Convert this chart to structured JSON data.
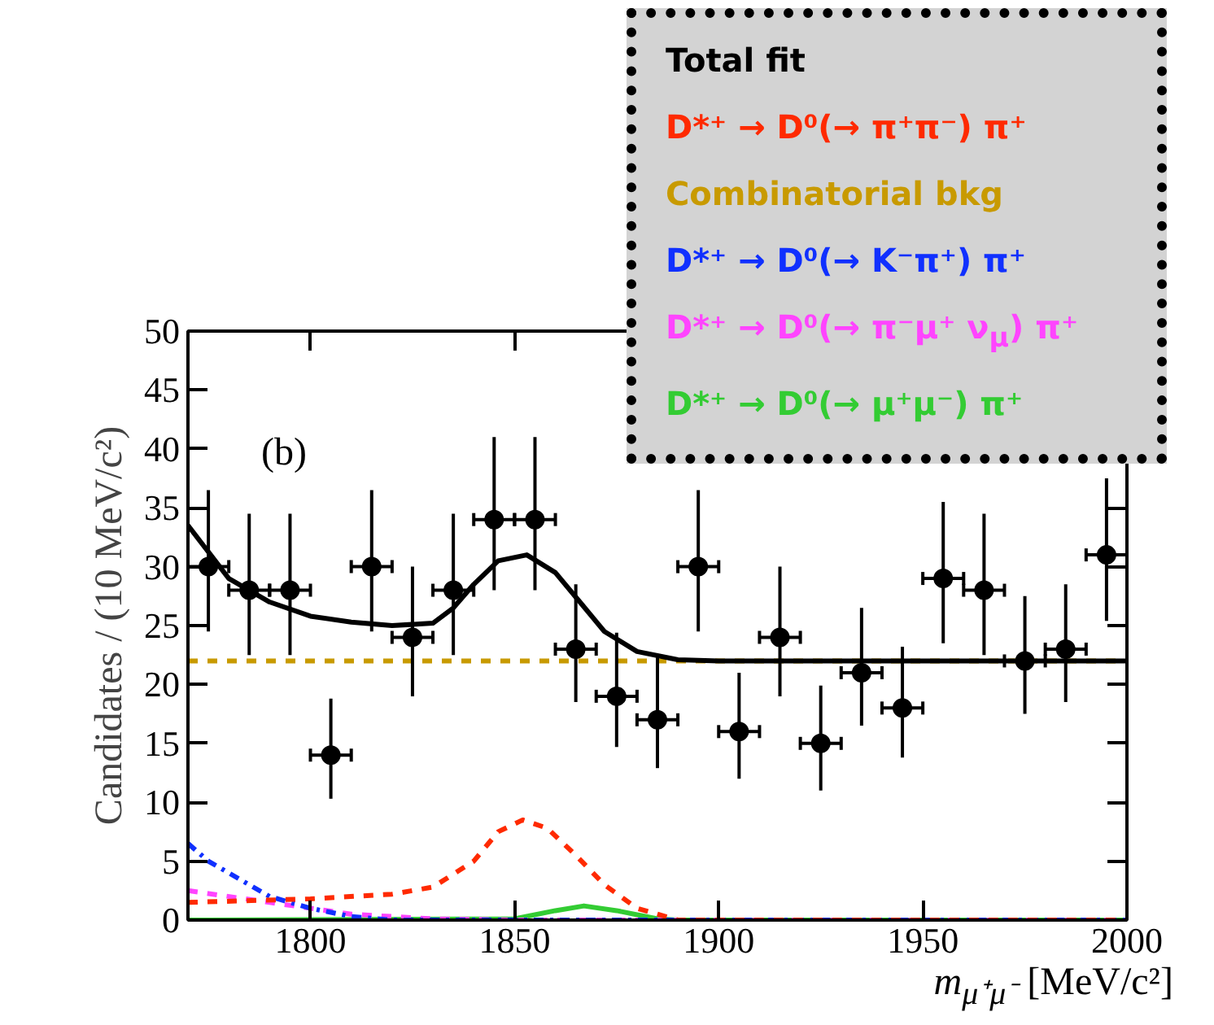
{
  "chart_data": {
    "type": "scatter",
    "xlabel": "m$_{μ⁺μ⁻}$ [MeV/c²]",
    "ylabel": "Candidates / (10 MeV/c²)",
    "annotations": [
      "(b)"
    ],
    "xlim": [
      1770,
      2000
    ],
    "xticks": [
      1800,
      1850,
      1900,
      1950,
      2000
    ],
    "ylim": [
      0,
      50
    ],
    "yticks": [
      0,
      5,
      10,
      15,
      20,
      25,
      30,
      35,
      40,
      45,
      50
    ],
    "grid": false,
    "legend": "top right",
    "series": [
      {
        "marker": "circle",
        "color": "#000000",
        "x": [
          1775,
          1785,
          1795,
          1805,
          1815,
          1825,
          1835,
          1845,
          1855,
          1865,
          1875,
          1885,
          1895,
          1905,
          1915,
          1925,
          1935,
          1945,
          1955,
          1965,
          1975,
          1985,
          1995
        ],
        "values": [
          30,
          28,
          28,
          14,
          30,
          24,
          28,
          34,
          34,
          23,
          19,
          17,
          30,
          16,
          24,
          15,
          21,
          18,
          29,
          28,
          22,
          23,
          31
        ],
        "errors": [
          [
            24.5,
            36.5
          ],
          [
            22.5,
            34.5
          ],
          [
            22.5,
            34.5
          ],
          [
            10.3,
            18.8
          ],
          [
            24.5,
            36.5
          ],
          [
            19,
            30
          ],
          [
            22.5,
            34.5
          ],
          [
            28,
            41
          ],
          [
            28,
            41
          ],
          [
            18.5,
            28.5
          ],
          [
            14.7,
            24.4
          ],
          [
            12.9,
            22.3
          ],
          [
            24.5,
            36.5
          ],
          [
            12,
            21
          ],
          [
            19,
            30
          ],
          [
            11,
            19.9
          ],
          [
            16.5,
            26.5
          ],
          [
            13.8,
            23.2
          ],
          [
            23.5,
            35.5
          ],
          [
            22.5,
            34.5
          ],
          [
            17.5,
            27.5
          ],
          [
            18.5,
            28.5
          ],
          [
            25.4,
            37.5
          ]
        ],
        "xerrors": [
          5,
          5,
          5,
          5,
          5,
          5,
          5,
          5,
          5,
          5,
          5,
          5,
          5,
          5,
          5,
          5,
          5,
          5,
          5,
          5,
          5,
          5,
          5
        ]
      },
      {
        "type": "line",
        "name": "Total fit",
        "color": "#000000",
        "line_style": "solid",
        "x": [
          1770,
          1780,
          1790,
          1800,
          1810,
          1820,
          1830,
          1835,
          1840,
          1846,
          1853,
          1860,
          1866,
          1872,
          1880,
          1890,
          1900,
          2000
        ],
        "values": [
          33.5,
          29,
          27,
          25.8,
          25.3,
          25,
          25.2,
          26.5,
          28.5,
          30.5,
          31,
          29.5,
          27,
          24.5,
          22.8,
          22.1,
          22,
          22
        ]
      },
      {
        "type": "line",
        "name": "D*⁺ → D⁰(→ π⁺π⁻) π⁺",
        "color": "#ff2a00",
        "line_style": "dashed",
        "x": [
          1770,
          1800,
          1820,
          1830,
          1840,
          1846,
          1852,
          1858,
          1865,
          1872,
          1880,
          1890,
          2000
        ],
        "values": [
          1.5,
          1.8,
          2.2,
          2.8,
          5,
          7.5,
          8.5,
          7.8,
          5.5,
          3,
          1,
          0,
          0
        ]
      },
      {
        "type": "line",
        "name": "Combinatorial bkg",
        "color": "#c89a00",
        "line_style": "dashed",
        "x": [
          1770,
          2000
        ],
        "values": [
          22,
          22
        ]
      },
      {
        "type": "line",
        "name": "D*⁺ → D⁰(→ K⁻π⁺) π⁺",
        "color": "#1030ff",
        "line_style": "dashdot",
        "x": [
          1770,
          1775,
          1780,
          1790,
          1800,
          1810,
          1820,
          2000
        ],
        "values": [
          6.5,
          5,
          4,
          2,
          1,
          0.3,
          0,
          0
        ]
      },
      {
        "type": "line",
        "name": "D*⁺ → D⁰(→ π⁻μ⁺ ν$_{μ}$) π⁺",
        "color": "#ff44ff",
        "line_style": "dashed",
        "x": [
          1770,
          1790,
          1810,
          1830,
          1850,
          2000
        ],
        "values": [
          2.5,
          1.5,
          0.5,
          0.1,
          0,
          0
        ]
      },
      {
        "type": "line",
        "name": "D*⁺ → D⁰(→ μ⁺μ⁻) π⁺",
        "color": "#33cc33",
        "line_style": "solid",
        "x": [
          1770,
          1850,
          1860,
          1867,
          1875,
          1885,
          1890,
          2000
        ],
        "values": [
          0,
          0.1,
          0.8,
          1.2,
          0.8,
          0.1,
          0,
          0
        ]
      }
    ]
  }
}
